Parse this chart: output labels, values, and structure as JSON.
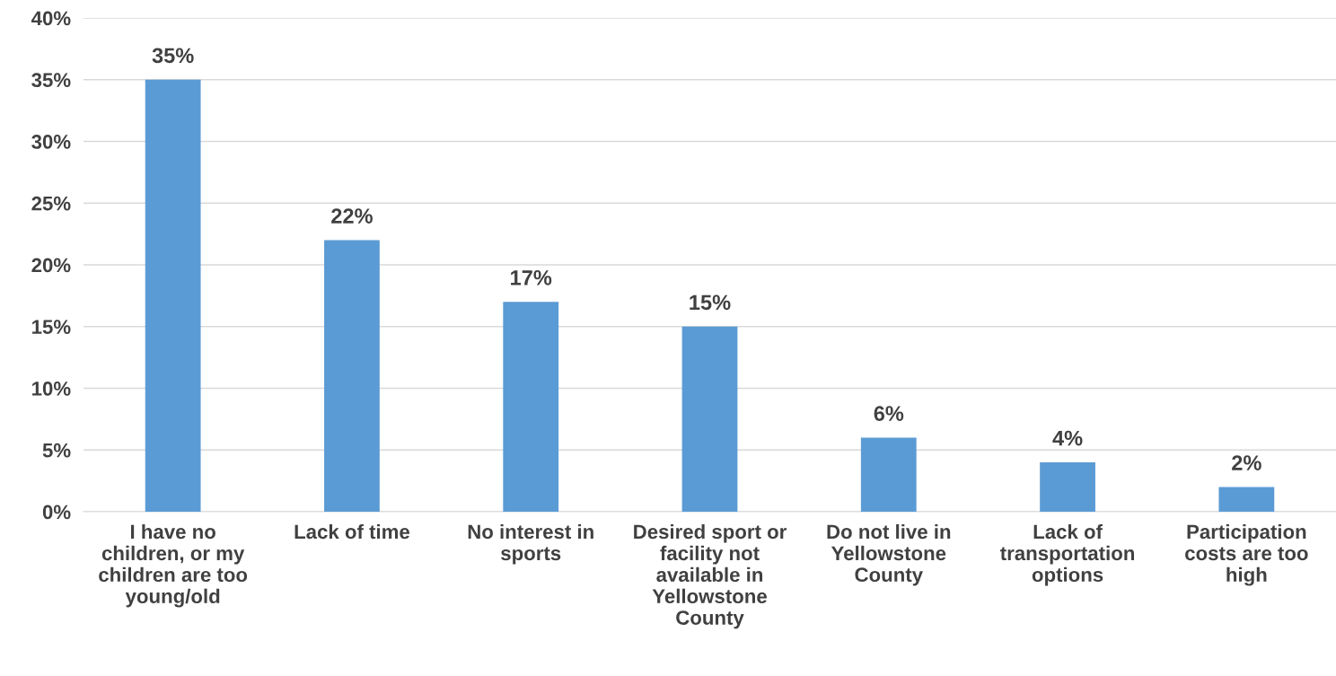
{
  "chart_data": {
    "type": "bar",
    "categories": [
      "I have no\nchildren, or my\nchildren are too\nyoung/old",
      "Lack of time",
      "No interest in\nsports",
      "Desired sport or\nfacility not\navailable in\nYellowstone\nCounty",
      "Do not live in\nYellowstone\nCounty",
      "Lack of\ntransportation\noptions",
      "Participation\ncosts are too\nhigh"
    ],
    "values": [
      35,
      22,
      17,
      15,
      6,
      4,
      2
    ],
    "color": "#5b9bd5",
    "ylim": [
      0,
      40
    ],
    "yticks": [
      {
        "value": 0,
        "label": "0%"
      },
      {
        "value": 5,
        "label": "5%"
      },
      {
        "value": 10,
        "label": "10%"
      },
      {
        "value": 15,
        "label": "15%"
      },
      {
        "value": 20,
        "label": "20%"
      },
      {
        "value": 25,
        "label": "25%"
      },
      {
        "value": 30,
        "label": "30%"
      },
      {
        "value": 35,
        "label": "35%"
      },
      {
        "value": 40,
        "label": "40%"
      }
    ],
    "value_labels": [
      "35%",
      "22%",
      "17%",
      "15%",
      "6%",
      "4%",
      "2%"
    ],
    "grid": "y",
    "legend": false
  }
}
